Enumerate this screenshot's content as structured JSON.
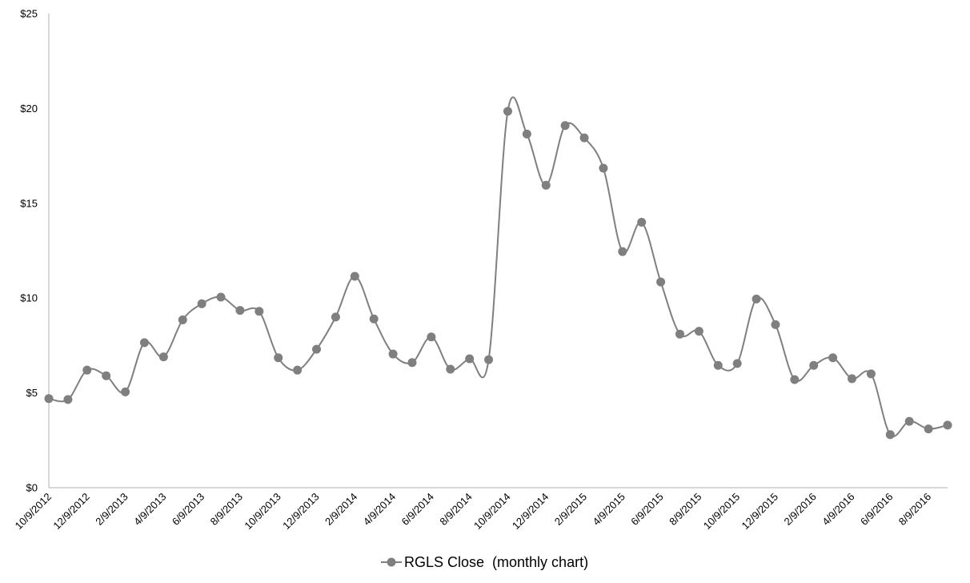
{
  "chart_data": {
    "type": "line",
    "title": "",
    "xlabel": "",
    "ylabel": "",
    "ylim": [
      0,
      25
    ],
    "yticks": [
      "$0",
      "$5",
      "$10",
      "$15",
      "$20",
      "$25"
    ],
    "ytick_values": [
      0,
      5,
      10,
      15,
      20,
      25
    ],
    "x_tick_labels": [
      "10/9/2012",
      "12/9/2012",
      "2/9/2013",
      "4/9/2013",
      "6/9/2013",
      "8/9/2013",
      "10/9/2013",
      "12/9/2013",
      "2/9/2014",
      "4/9/2014",
      "6/9/2014",
      "8/9/2014",
      "10/9/2014",
      "12/9/2014",
      "2/9/2015",
      "4/9/2015",
      "6/9/2015",
      "8/9/2015",
      "10/9/2015",
      "12/9/2015",
      "2/9/2016",
      "4/9/2016",
      "6/9/2016",
      "8/9/2016"
    ],
    "grid": false,
    "smooth": true,
    "legend_position": "bottom",
    "line_color": "#7f7f7f",
    "marker_color": "#7f7f7f",
    "series": [
      {
        "name": "RGLS Close  (monthly chart)",
        "values": [
          4.7,
          4.65,
          6.2,
          5.9,
          5.05,
          7.65,
          6.9,
          8.85,
          9.7,
          10.05,
          9.35,
          9.3,
          6.85,
          6.2,
          7.3,
          9.0,
          11.15,
          8.9,
          7.05,
          6.6,
          7.95,
          6.25,
          6.8,
          6.75,
          19.85,
          18.65,
          15.95,
          19.1,
          18.45,
          16.85,
          12.45,
          14.0,
          10.85,
          8.1,
          8.25,
          6.45,
          6.55,
          9.95,
          8.6,
          5.7,
          6.45,
          6.85,
          5.75,
          6.0,
          2.8,
          3.5,
          3.1,
          3.3
        ]
      }
    ]
  }
}
